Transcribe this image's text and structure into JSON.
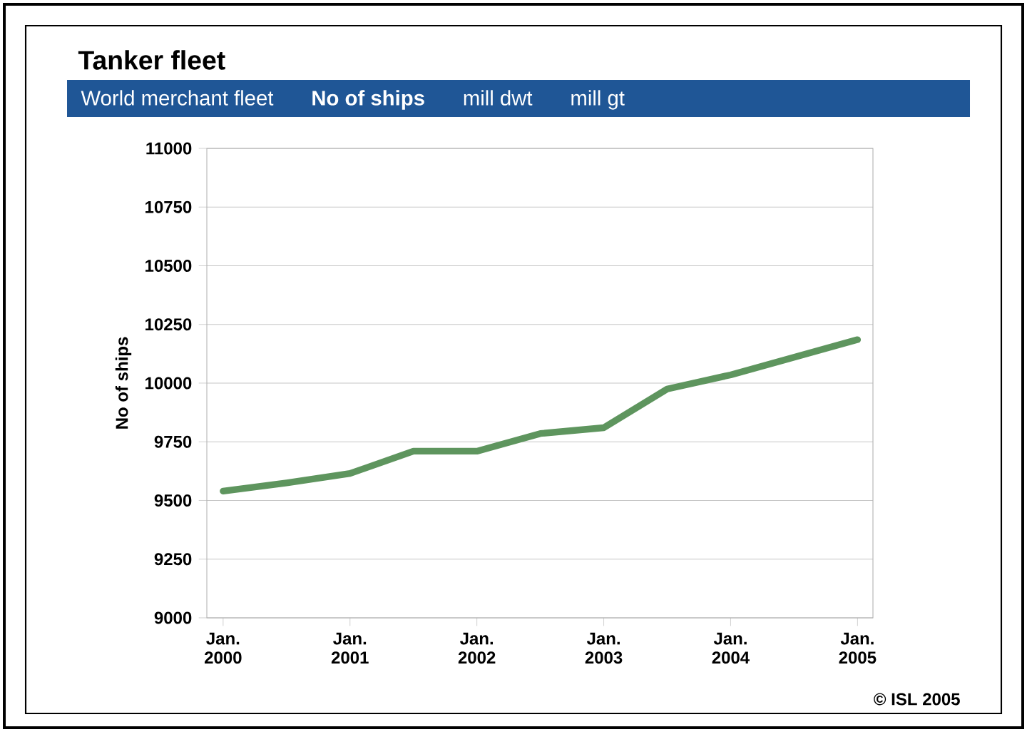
{
  "chart_data": {
    "type": "line",
    "title": "Tanker fleet",
    "ylabel": "No of ships",
    "annotations": [
      "World merchant fleet",
      "**No of ships**",
      "mill dwt",
      "mill gt",
      "© ISL 2005"
    ],
    "x": [
      "2000-01",
      "2000-07",
      "2001-01",
      "2001-07",
      "2002-01",
      "2002-07",
      "2003-01",
      "2003-07",
      "2004-01",
      "2004-07",
      "2005-01"
    ],
    "series": [
      {
        "color": "#5e955e",
        "values": [
          9540,
          9575,
          9615,
          9710,
          9710,
          9785,
          9810,
          9975,
          10035,
          10110,
          10185
        ]
      }
    ],
    "xlim": [
      "1999-11-15",
      "2005-02-15"
    ],
    "xticks": [
      {
        "value": "2000-01",
        "label": "Jan. 2000"
      },
      {
        "value": "2001-01",
        "label": "Jan. 2001"
      },
      {
        "value": "2002-01",
        "label": "Jan. 2002"
      },
      {
        "value": "2003-01",
        "label": "Jan. 2003"
      },
      {
        "value": "2004-01",
        "label": "Jan. 2004"
      },
      {
        "value": "2005-01",
        "label": "Jan. 2005"
      }
    ],
    "ylim": [
      9000,
      11000
    ],
    "yticks": [
      9000,
      9250,
      9500,
      9750,
      10000,
      10250,
      10500,
      10750,
      11000
    ],
    "grid": "y",
    "marker": "none",
    "line_style": "solid"
  }
}
